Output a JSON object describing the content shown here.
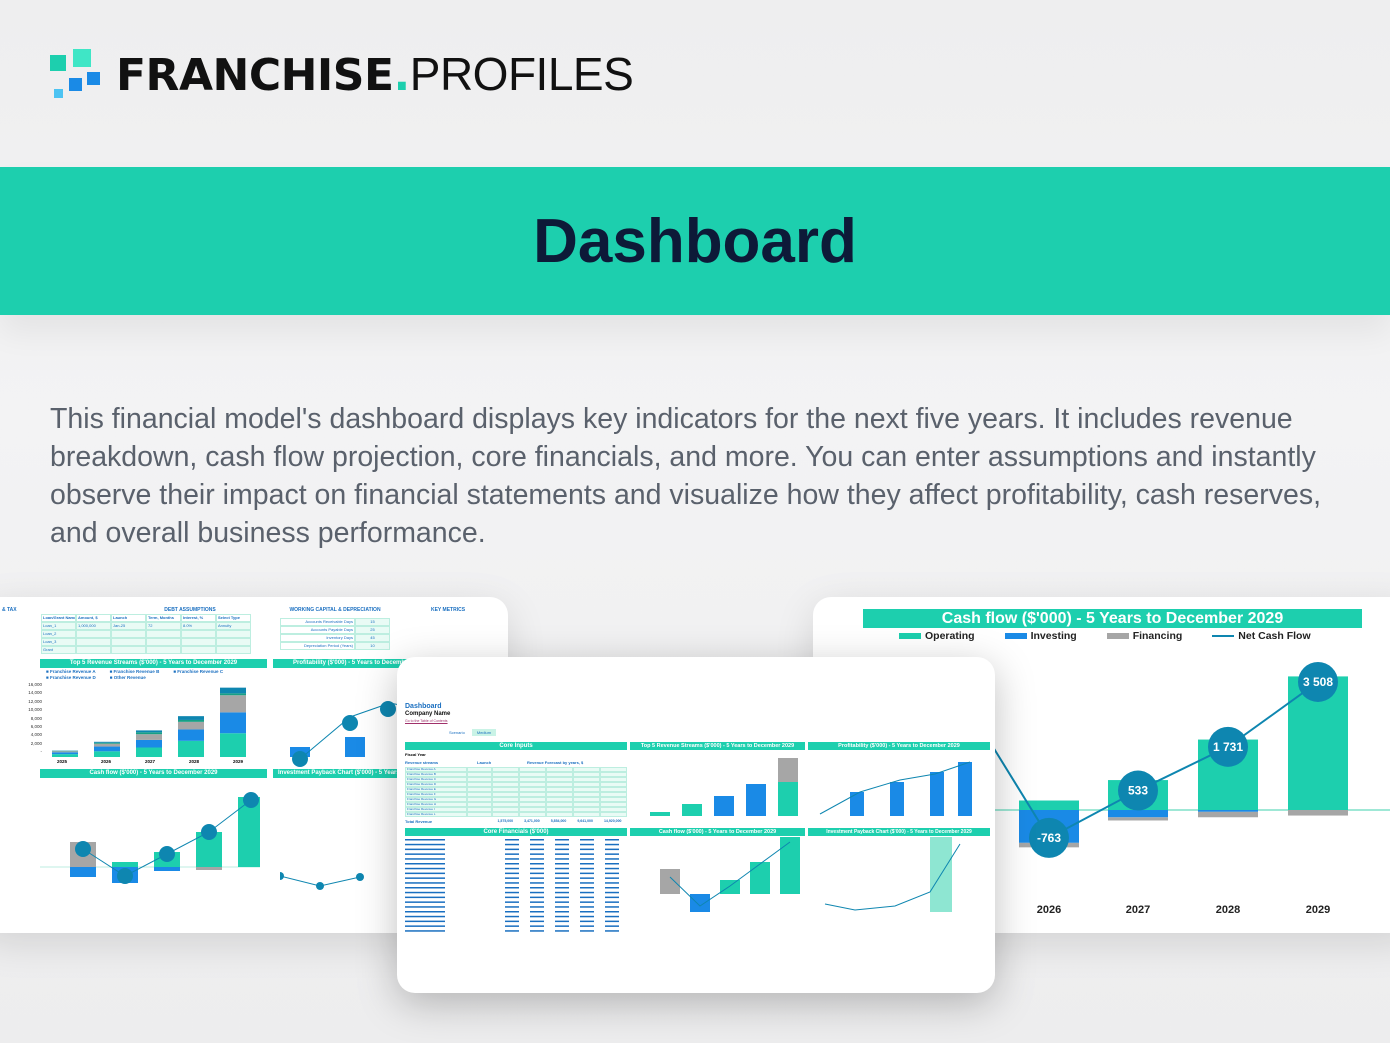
{
  "brand": {
    "name_bold": "FRANCHISE",
    "dot": ".",
    "name_light": "PROFILES",
    "colors": {
      "teal": "#1dcfae",
      "light_teal": "#3fe6c6",
      "blue": "#1a8ae6",
      "light_blue": "#4cc3f2"
    }
  },
  "banner": {
    "title": "Dashboard",
    "color": "#1dcfae"
  },
  "description": "This financial model's dashboard displays key indicators for the next five years. It includes revenue breakdown, cash flow projection, core financials, and more. You can enter assumptions and instantly observe their impact on financial statements and visualize how they affect profitability, cash reserves, and overall business performance.",
  "left_card": {
    "sections": {
      "tax": "& TAX",
      "debt": "DEBT ASSUMPTIONS",
      "wc": "WORKING CAPITAL & DEPRECIATION",
      "kpi": "KEY METRICS"
    },
    "debt_headers": [
      "Loan/Grant Name",
      "Amount, $",
      "Launch",
      "Term, Months",
      "Interest, %",
      "Select Type"
    ],
    "debt_rows": [
      [
        "Loan_1",
        "1,000,000",
        "Jan-25",
        "72",
        "8.0%",
        "Annuity"
      ],
      [
        "Loan_2",
        "",
        "",
        "",
        "",
        ""
      ],
      [
        "Loan_3",
        "",
        "",
        "",
        "",
        ""
      ],
      [
        "Grant",
        "",
        "",
        "",
        "",
        ""
      ]
    ],
    "wc_rows": [
      [
        "Accounts Receivable Days",
        "15"
      ],
      [
        "Accounts Payable Days",
        "25"
      ],
      [
        "Inventory Days",
        "45"
      ],
      [
        "Depreciation Period (Years)",
        "10"
      ]
    ],
    "revenue_title": "Top 5 Revenue Streams ($'000) - 5 Years to December 2029",
    "revenue_legend": [
      "Franchise Revenue A",
      "Franchise Revenue B",
      "Franchise Revenue C",
      "Franchise Revenue D",
      "Other Revenue"
    ],
    "revenue_axis": [
      "16,000",
      "14,000",
      "12,000",
      "10,000",
      "8,000",
      "6,000",
      "4,000",
      "2,000",
      "-"
    ],
    "years": [
      "2025",
      "2026",
      "2027",
      "2028",
      "2029"
    ],
    "profit_title": "Profitability ($'000) - 5 Years to December 2029",
    "cashflow_title": "Cash flow ($'000) - 5 Years to December 2029",
    "payback_title": "Investment Payback Chart ($'000) - 5 Years to December 2029"
  },
  "center_card": {
    "title": "Dashboard",
    "company": "Company Name",
    "toc_link": "Go to the Table of Contents",
    "scenario_label": "Scenario",
    "scenario_value": "Medium",
    "core_inputs": "Core Inputs",
    "fiscal_year": "Fiscal Year",
    "revenue_streams": "Revenue streams",
    "launch": "Launch",
    "forecast": "Revenue Forecast by years, $",
    "total_revenue": "Total Revenue",
    "revenue_rows": [
      "Franchise Revenue A",
      "Franchise Revenue B",
      "Franchise Revenue C",
      "Franchise Revenue D",
      "Franchise Revenue E",
      "Franchise Revenue F",
      "Franchise Revenue G",
      "Franchise Revenue H",
      "Franchise Revenue I",
      "Franchise Revenue L"
    ],
    "totals": [
      "1,575,000",
      "3,471,000",
      "5,854,000",
      "9,641,000",
      "14,920,000"
    ],
    "core_financials": "Core Financials ($'000)",
    "top5_title": "Top 5 Revenue Streams ($'000) - 5 Years to December 2029",
    "profit_title": "Profitability ($'000) - 5 Years to December 2029",
    "cashflow_title": "Cash flow ($'000) - 5 Years to December 2029",
    "payback_title": "Investment Payback Chart ($'000) - 5 Years to December 2029",
    "years": [
      "2025",
      "2026",
      "2027",
      "2028",
      "2029"
    ]
  },
  "chart_data": {
    "type": "bar",
    "title": "Cash flow ($'000) - 5 Years to December 2029",
    "categories": [
      "2026",
      "2027",
      "2028",
      "2029"
    ],
    "series": [
      {
        "name": "Operating",
        "color": "#1dcfae",
        "values": [
          260,
          820,
          1930,
          3660
        ]
      },
      {
        "name": "Investing",
        "color": "#1a8ae6",
        "values": [
          -900,
          -200,
          -50,
          0
        ]
      },
      {
        "name": "Financing",
        "color": "#a6a6a6",
        "values": [
          -123,
          -87,
          -149,
          -152
        ]
      },
      {
        "name": "Net Cash Flow",
        "type": "line",
        "color": "#0e86b0",
        "values": [
          -763,
          533,
          1731,
          3508
        ]
      }
    ],
    "data_labels": [
      "-763",
      "533",
      "1 731",
      "3 508"
    ],
    "legend": "top"
  }
}
